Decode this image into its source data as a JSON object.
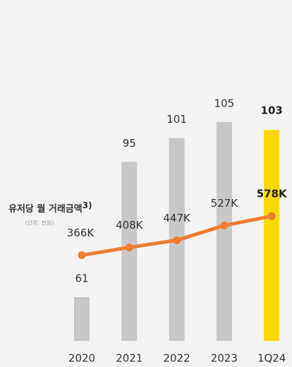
{
  "chart_data": {
    "type": "bar_line",
    "title": "유저당 월 거래금액",
    "title_note": "3)",
    "subtitle": "(단위: 천원)",
    "categories": [
      "2020",
      "2021",
      "2022",
      "2023",
      "1Q24"
    ],
    "series": [
      {
        "type": "bar",
        "color": "#c8c8c8",
        "highlight_color": "#ffd700",
        "highlight_index": 4,
        "values": [
          61,
          95,
          101,
          105,
          103
        ]
      },
      {
        "type": "line",
        "axis": "y2",
        "color": "#ef7d32",
        "values": [
          366000,
          408000,
          447000,
          527000,
          578000
        ],
        "value_labels": [
          "366K",
          "408K",
          "447K",
          "527K",
          "578K"
        ]
      }
    ],
    "ylim": [
      50,
      130
    ],
    "y2lim": [
      -100000,
      1630000
    ]
  }
}
